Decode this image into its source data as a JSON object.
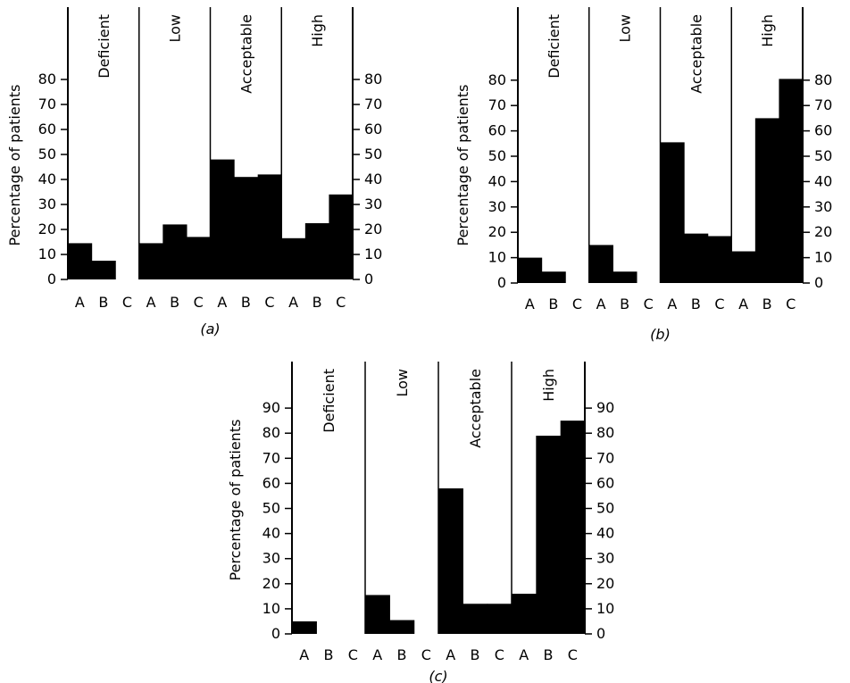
{
  "chart_data": [
    {
      "type": "bar",
      "panel_label": "(a)",
      "ylabel": "Percentage of patients",
      "ylim": [
        0,
        80
      ],
      "yticks": [
        0,
        10,
        20,
        30,
        40,
        50,
        60,
        70,
        80
      ],
      "groups": [
        "Deficient",
        "Low",
        "Acceptable",
        "High"
      ],
      "categories": [
        "A",
        "B",
        "C",
        "A",
        "B",
        "C",
        "A",
        "B",
        "C",
        "A",
        "B",
        "C"
      ],
      "values": [
        14.5,
        7.5,
        0,
        14.5,
        22,
        17,
        48,
        41,
        42,
        16.5,
        22.5,
        34
      ],
      "grid": false,
      "bar_color": "#000000"
    },
    {
      "type": "bar",
      "panel_label": "(b)",
      "ylabel": "Percentage of patients",
      "ylim": [
        0,
        80
      ],
      "yticks": [
        0,
        10,
        20,
        30,
        40,
        50,
        60,
        70,
        80
      ],
      "groups": [
        "Deficient",
        "Low",
        "Acceptable",
        "High"
      ],
      "categories": [
        "A",
        "B",
        "C",
        "A",
        "B",
        "C",
        "A",
        "B",
        "C",
        "A",
        "B",
        "C"
      ],
      "values": [
        10,
        4.5,
        0,
        15,
        4.5,
        0,
        55.5,
        19.5,
        18.5,
        12.5,
        65,
        80.5
      ],
      "grid": false,
      "bar_color": "#000000"
    },
    {
      "type": "bar",
      "panel_label": "(c)",
      "ylabel": "Percentage of patients",
      "ylim": [
        0,
        90
      ],
      "yticks": [
        0,
        10,
        20,
        30,
        40,
        50,
        60,
        70,
        80,
        90
      ],
      "groups": [
        "Deficient",
        "Low",
        "Acceptable",
        "High"
      ],
      "categories": [
        "A",
        "B",
        "C",
        "A",
        "B",
        "C",
        "A",
        "B",
        "C",
        "A",
        "B",
        "C"
      ],
      "values": [
        5,
        0,
        0,
        15.5,
        5.5,
        0,
        58,
        12,
        12,
        16,
        79,
        85
      ],
      "grid": false,
      "bar_color": "#000000"
    }
  ]
}
